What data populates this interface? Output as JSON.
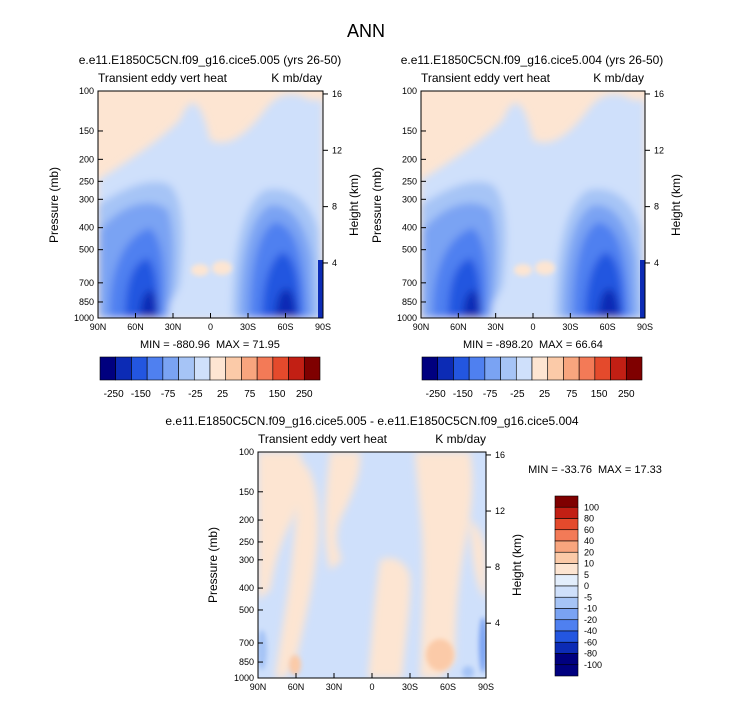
{
  "figure": {
    "title": "ANN"
  },
  "colors": {
    "abs_levels": [
      "#00007f",
      "#0c2bb5",
      "#2356e0",
      "#4f80f0",
      "#7aa3f3",
      "#a6c4f6",
      "#cfe0fb",
      "#fde5d2",
      "#fbcaa8",
      "#f8a57e",
      "#f37a57",
      "#e44a2c",
      "#c21f14",
      "#7f0000"
    ],
    "diff_levels": [
      "#00007f",
      "#0c2bb5",
      "#2356e0",
      "#4f80f0",
      "#7aa3f3",
      "#a6c4f6",
      "#cfe0fb",
      "#e3eefc",
      "#fde5d2",
      "#fbcaa8",
      "#f8a57e",
      "#f37a57",
      "#e44a2c",
      "#c21f14",
      "#7f0000"
    ]
  },
  "chart_data": [
    {
      "type": "heatmap",
      "title": "e.e11.E1850C5CN.f09_g16.cice5.005 (yrs 26-50)",
      "left_label": "Transient eddy vert heat",
      "right_label": "K mb/day",
      "xlabel": "",
      "ylabel": "Pressure (mb)",
      "ylabel_right": "Height (km)",
      "x_ticks": [
        "90N",
        "60N",
        "30N",
        "0",
        "30S",
        "60S",
        "90S"
      ],
      "y_ticks": [
        "100",
        "150",
        "200",
        "250",
        "300",
        "400",
        "500",
        "700",
        "850",
        "1000"
      ],
      "y_ticks_right": [
        "16",
        "12",
        "8",
        "4"
      ],
      "stats": {
        "min_label": "MIN = -880.96",
        "max_label": "MAX = 71.95",
        "min": -880.96,
        "max": 71.95
      },
      "colorbar_labels": [
        "-250",
        "-150",
        "-75",
        "-25",
        "25",
        "75",
        "150",
        "250"
      ],
      "colorbar_levels": [
        -250,
        -200,
        -150,
        -100,
        -75,
        -50,
        -25,
        0,
        25,
        50,
        75,
        100,
        150,
        200,
        250
      ]
    },
    {
      "type": "heatmap",
      "title": "e.e11.E1850C5CN.f09_g16.cice5.004 (yrs 26-50)",
      "left_label": "Transient eddy vert heat",
      "right_label": "K mb/day",
      "xlabel": "",
      "ylabel": "Pressure (mb)",
      "ylabel_right": "Height (km)",
      "x_ticks": [
        "90N",
        "60N",
        "30N",
        "0",
        "30S",
        "60S",
        "90S"
      ],
      "y_ticks": [
        "100",
        "150",
        "200",
        "250",
        "300",
        "400",
        "500",
        "700",
        "850",
        "1000"
      ],
      "y_ticks_right": [
        "16",
        "12",
        "8",
        "4"
      ],
      "stats": {
        "min_label": "MIN = -898.20",
        "max_label": "MAX = 66.64",
        "min": -898.2,
        "max": 66.64
      },
      "colorbar_labels": [
        "-250",
        "-150",
        "-75",
        "-25",
        "25",
        "75",
        "150",
        "250"
      ],
      "colorbar_levels": [
        -250,
        -200,
        -150,
        -100,
        -75,
        -50,
        -25,
        0,
        25,
        50,
        75,
        100,
        150,
        200,
        250
      ]
    },
    {
      "type": "heatmap",
      "title": "e.e11.E1850C5CN.f09_g16.cice5.005 - e.e11.E1850C5CN.f09_g16.cice5.004",
      "left_label": "Transient eddy vert heat",
      "right_label": "K mb/day",
      "xlabel": "",
      "ylabel": "Pressure (mb)",
      "ylabel_right": "Height (km)",
      "x_ticks": [
        "90N",
        "60N",
        "30N",
        "0",
        "30S",
        "60S",
        "90S"
      ],
      "y_ticks": [
        "100",
        "150",
        "200",
        "250",
        "300",
        "400",
        "500",
        "700",
        "850",
        "1000"
      ],
      "y_ticks_right": [
        "16",
        "12",
        "8",
        "4"
      ],
      "stats": {
        "min_label": "MIN = -33.76",
        "max_label": "MAX = 17.33",
        "min": -33.76,
        "max": 17.33
      },
      "colorbar_labels": [
        "100",
        "80",
        "60",
        "40",
        "20",
        "10",
        "5",
        "0",
        "-5",
        "-10",
        "-20",
        "-40",
        "-60",
        "-80",
        "-100"
      ],
      "colorbar_levels": [
        -100,
        -80,
        -60,
        -40,
        -20,
        -10,
        -5,
        0,
        5,
        10,
        20,
        40,
        60,
        80,
        100
      ]
    }
  ]
}
